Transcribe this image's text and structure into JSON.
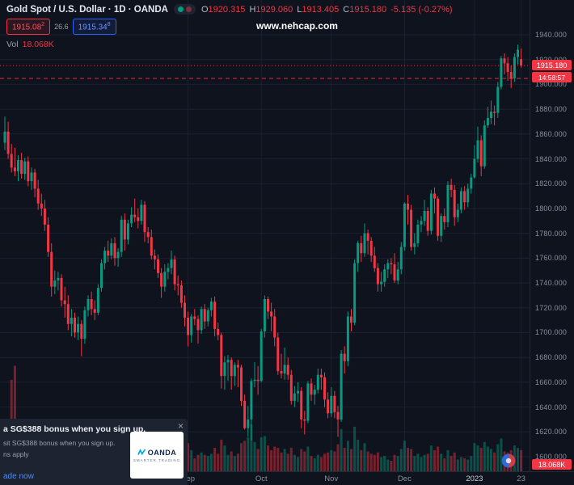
{
  "header": {
    "symbol_title": "Gold Spot / U.S. Dollar · 1D · OANDA",
    "ohlc": {
      "o_label": "O",
      "o": "1920.315",
      "h_label": "H",
      "h": "1929.060",
      "l_label": "L",
      "l": "1913.405",
      "c_label": "C",
      "c": "1915.180",
      "change": "-5.135 (-0.27%)"
    },
    "sell_price": "1915.08",
    "sell_sup": "2",
    "spread": "26.6",
    "buy_price": "1915.34",
    "buy_sup": "8",
    "vol_label": "Vol",
    "vol_value": "18.068K"
  },
  "watermark": "www.nehcap.com",
  "colors": {
    "up": "#089981",
    "down": "#f23645",
    "accent": "#2962ff",
    "badge": "#f23645"
  },
  "chart_data": {
    "type": "candlestick",
    "title": "Gold Spot / U.S. Dollar",
    "symbol": "XAU/USD",
    "timeframe": "1D",
    "exchange": "OANDA",
    "price_axis": {
      "min": 1600,
      "max": 1940,
      "step": 20,
      "labels": [
        "1940.000",
        "1920.000",
        "1900.000",
        "1880.000",
        "1860.000",
        "1840.000",
        "1820.000",
        "1800.000",
        "1780.000",
        "1760.000",
        "1740.000",
        "1720.000",
        "1700.000",
        "1680.000",
        "1660.000",
        "1640.000",
        "1620.000",
        "1600.000"
      ]
    },
    "x_labels": [
      {
        "label": "Sep",
        "index": 55,
        "major": false
      },
      {
        "label": "Oct",
        "index": 77,
        "major": false
      },
      {
        "label": "Nov",
        "index": 98,
        "major": false
      },
      {
        "label": "Dec",
        "index": 120,
        "major": false
      },
      {
        "label": "2023",
        "index": 141,
        "major": true
      },
      {
        "label": "23",
        "index": 155,
        "major": false
      }
    ],
    "current_price": {
      "value": 1915.18,
      "label": "1915.180",
      "countdown": "14:58:57"
    },
    "alert_line_price": 1904.8,
    "volume_label": "18.068K",
    "last_volume": "18.068K",
    "candles_format": [
      "open",
      "high",
      "low",
      "close",
      "volume_k"
    ],
    "candles": [
      [
        1853,
        1874,
        1847,
        1862,
        28
      ],
      [
        1862,
        1870,
        1840,
        1844,
        25
      ],
      [
        1844,
        1852,
        1829,
        1833,
        78
      ],
      [
        1833,
        1849,
        1826,
        1830,
        90
      ],
      [
        1830,
        1843,
        1822,
        1839,
        34
      ],
      [
        1839,
        1845,
        1824,
        1828,
        20
      ],
      [
        1828,
        1841,
        1823,
        1838,
        17
      ],
      [
        1838,
        1842,
        1818,
        1822,
        19
      ],
      [
        1822,
        1833,
        1815,
        1829,
        15
      ],
      [
        1829,
        1832,
        1809,
        1816,
        16
      ],
      [
        1816,
        1823,
        1799,
        1804,
        18
      ],
      [
        1804,
        1812,
        1794,
        1800,
        19
      ],
      [
        1800,
        1807,
        1782,
        1787,
        18
      ],
      [
        1787,
        1793,
        1761,
        1765,
        24
      ],
      [
        1765,
        1772,
        1729,
        1737,
        28
      ],
      [
        1737,
        1750,
        1731,
        1742,
        21
      ],
      [
        1742,
        1749,
        1734,
        1744,
        15
      ],
      [
        1744,
        1747,
        1721,
        1726,
        18
      ],
      [
        1726,
        1737,
        1712,
        1723,
        19
      ],
      [
        1723,
        1730,
        1702,
        1707,
        22
      ],
      [
        1707,
        1719,
        1697,
        1712,
        20
      ],
      [
        1712,
        1716,
        1696,
        1700,
        17
      ],
      [
        1700,
        1713,
        1694,
        1707,
        14
      ],
      [
        1707,
        1710,
        1681,
        1695,
        23
      ],
      [
        1695,
        1721,
        1691,
        1718,
        21
      ],
      [
        1718,
        1730,
        1713,
        1727,
        18
      ],
      [
        1727,
        1733,
        1714,
        1719,
        13
      ],
      [
        1719,
        1726,
        1710,
        1716,
        12
      ],
      [
        1716,
        1739,
        1714,
        1736,
        16
      ],
      [
        1736,
        1759,
        1733,
        1756,
        22
      ],
      [
        1756,
        1769,
        1751,
        1766,
        20
      ],
      [
        1766,
        1774,
        1757,
        1762,
        14
      ],
      [
        1762,
        1776,
        1759,
        1772,
        15
      ],
      [
        1772,
        1777,
        1754,
        1760,
        14
      ],
      [
        1760,
        1768,
        1753,
        1765,
        12
      ],
      [
        1765,
        1794,
        1761,
        1791,
        22
      ],
      [
        1791,
        1796,
        1766,
        1775,
        19
      ],
      [
        1775,
        1791,
        1771,
        1788,
        16
      ],
      [
        1788,
        1801,
        1785,
        1795,
        18
      ],
      [
        1795,
        1808,
        1789,
        1793,
        21
      ],
      [
        1793,
        1800,
        1784,
        1790,
        14
      ],
      [
        1790,
        1807,
        1787,
        1803,
        17
      ],
      [
        1803,
        1806,
        1773,
        1781,
        18
      ],
      [
        1781,
        1785,
        1772,
        1777,
        13
      ],
      [
        1777,
        1783,
        1759,
        1762,
        16
      ],
      [
        1762,
        1767,
        1751,
        1759,
        14
      ],
      [
        1759,
        1763,
        1744,
        1748,
        15
      ],
      [
        1748,
        1752,
        1728,
        1737,
        19
      ],
      [
        1737,
        1755,
        1733,
        1749,
        16
      ],
      [
        1749,
        1756,
        1743,
        1752,
        12
      ],
      [
        1752,
        1766,
        1747,
        1759,
        14
      ],
      [
        1759,
        1762,
        1734,
        1739,
        17
      ],
      [
        1739,
        1746,
        1730,
        1738,
        13
      ],
      [
        1738,
        1742,
        1720,
        1724,
        16
      ],
      [
        1724,
        1730,
        1705,
        1712,
        21
      ],
      [
        1712,
        1717,
        1689,
        1698,
        24
      ],
      [
        1698,
        1715,
        1692,
        1713,
        18
      ],
      [
        1713,
        1719,
        1706,
        1711,
        11
      ],
      [
        1711,
        1714,
        1691,
        1702,
        14
      ],
      [
        1702,
        1721,
        1699,
        1719,
        16
      ],
      [
        1719,
        1723,
        1703,
        1709,
        14
      ],
      [
        1709,
        1720,
        1705,
        1718,
        13
      ],
      [
        1718,
        1728,
        1713,
        1725,
        15
      ],
      [
        1725,
        1729,
        1697,
        1703,
        20
      ],
      [
        1703,
        1708,
        1694,
        1698,
        15
      ],
      [
        1698,
        1700,
        1655,
        1665,
        27
      ],
      [
        1665,
        1681,
        1654,
        1676,
        22
      ],
      [
        1676,
        1682,
        1661,
        1678,
        14
      ],
      [
        1678,
        1680,
        1654,
        1665,
        17
      ],
      [
        1665,
        1676,
        1657,
        1674,
        13
      ],
      [
        1674,
        1678,
        1656,
        1672,
        15
      ],
      [
        1672,
        1674,
        1641,
        1645,
        24
      ],
      [
        1645,
        1650,
        1622,
        1623,
        26
      ],
      [
        1623,
        1641,
        1616,
        1630,
        29
      ],
      [
        1630,
        1663,
        1613,
        1661,
        40
      ],
      [
        1661,
        1676,
        1656,
        1662,
        25
      ],
      [
        1662,
        1673,
        1650,
        1661,
        19
      ],
      [
        1661,
        1703,
        1660,
        1701,
        29
      ],
      [
        1701,
        1730,
        1696,
        1727,
        30
      ],
      [
        1727,
        1729,
        1711,
        1717,
        22
      ],
      [
        1717,
        1724,
        1701,
        1713,
        18
      ],
      [
        1713,
        1719,
        1689,
        1696,
        21
      ],
      [
        1696,
        1700,
        1666,
        1669,
        20
      ],
      [
        1669,
        1683,
        1663,
        1667,
        16
      ],
      [
        1667,
        1688,
        1662,
        1674,
        19
      ],
      [
        1674,
        1680,
        1662,
        1666,
        15
      ],
      [
        1666,
        1670,
        1642,
        1645,
        20
      ],
      [
        1645,
        1657,
        1640,
        1651,
        14
      ],
      [
        1651,
        1660,
        1644,
        1653,
        12
      ],
      [
        1653,
        1656,
        1623,
        1630,
        19
      ],
      [
        1630,
        1637,
        1618,
        1629,
        17
      ],
      [
        1629,
        1661,
        1627,
        1659,
        21
      ],
      [
        1659,
        1663,
        1645,
        1650,
        13
      ],
      [
        1650,
        1658,
        1642,
        1654,
        11
      ],
      [
        1654,
        1671,
        1651,
        1666,
        14
      ],
      [
        1666,
        1671,
        1654,
        1664,
        12
      ],
      [
        1664,
        1668,
        1640,
        1646,
        15
      ],
      [
        1646,
        1652,
        1631,
        1635,
        16
      ],
      [
        1635,
        1656,
        1632,
        1649,
        18
      ],
      [
        1649,
        1653,
        1631,
        1636,
        17
      ],
      [
        1636,
        1641,
        1616,
        1630,
        23
      ],
      [
        1630,
        1686,
        1628,
        1683,
        36
      ],
      [
        1683,
        1689,
        1667,
        1677,
        20
      ],
      [
        1677,
        1717,
        1673,
        1713,
        26
      ],
      [
        1713,
        1719,
        1701,
        1708,
        19
      ],
      [
        1708,
        1759,
        1706,
        1756,
        38
      ],
      [
        1756,
        1774,
        1749,
        1772,
        27
      ],
      [
        1772,
        1778,
        1757,
        1764,
        18
      ],
      [
        1764,
        1788,
        1761,
        1780,
        24
      ],
      [
        1780,
        1783,
        1763,
        1774,
        17
      ],
      [
        1774,
        1777,
        1757,
        1762,
        15
      ],
      [
        1762,
        1769,
        1749,
        1752,
        14
      ],
      [
        1752,
        1756,
        1733,
        1739,
        16
      ],
      [
        1739,
        1749,
        1733,
        1741,
        12
      ],
      [
        1741,
        1755,
        1737,
        1751,
        13
      ],
      [
        1751,
        1759,
        1744,
        1756,
        10
      ],
      [
        1756,
        1760,
        1747,
        1755,
        9
      ],
      [
        1755,
        1764,
        1740,
        1742,
        14
      ],
      [
        1742,
        1757,
        1739,
        1751,
        13
      ],
      [
        1751,
        1773,
        1747,
        1769,
        19
      ],
      [
        1769,
        1805,
        1766,
        1804,
        26
      ],
      [
        1804,
        1811,
        1787,
        1799,
        20
      ],
      [
        1799,
        1803,
        1766,
        1769,
        19
      ],
      [
        1769,
        1780,
        1763,
        1772,
        13
      ],
      [
        1772,
        1791,
        1769,
        1787,
        15
      ],
      [
        1787,
        1794,
        1781,
        1790,
        12
      ],
      [
        1790,
        1807,
        1786,
        1798,
        14
      ],
      [
        1798,
        1801,
        1778,
        1782,
        15
      ],
      [
        1782,
        1815,
        1779,
        1812,
        22
      ],
      [
        1812,
        1817,
        1796,
        1808,
        18
      ],
      [
        1808,
        1810,
        1774,
        1778,
        21
      ],
      [
        1778,
        1796,
        1773,
        1794,
        15
      ],
      [
        1794,
        1800,
        1783,
        1789,
        11
      ],
      [
        1789,
        1822,
        1785,
        1819,
        18
      ],
      [
        1819,
        1824,
        1809,
        1815,
        13
      ],
      [
        1815,
        1819,
        1786,
        1793,
        16
      ],
      [
        1793,
        1804,
        1789,
        1799,
        10
      ],
      [
        1799,
        1817,
        1796,
        1814,
        12
      ],
      [
        1814,
        1818,
        1799,
        1805,
        11
      ],
      [
        1805,
        1820,
        1801,
        1816,
        10
      ],
      [
        1816,
        1828,
        1812,
        1825,
        13
      ],
      [
        1825,
        1851,
        1824,
        1840,
        24
      ],
      [
        1840,
        1866,
        1837,
        1855,
        22
      ],
      [
        1855,
        1859,
        1826,
        1834,
        20
      ],
      [
        1834,
        1871,
        1832,
        1867,
        25
      ],
      [
        1867,
        1882,
        1865,
        1873,
        21
      ],
      [
        1873,
        1887,
        1868,
        1878,
        19
      ],
      [
        1878,
        1883,
        1867,
        1877,
        16
      ],
      [
        1877,
        1902,
        1873,
        1898,
        23
      ],
      [
        1898,
        1923,
        1896,
        1921,
        28
      ],
      [
        1921,
        1925,
        1908,
        1917,
        17
      ],
      [
        1917,
        1922,
        1903,
        1910,
        16
      ],
      [
        1910,
        1915,
        1897,
        1905,
        18
      ],
      [
        1905,
        1925,
        1902,
        1922,
        22
      ],
      [
        1922,
        1932,
        1916,
        1928,
        20
      ],
      [
        1920.315,
        1929.06,
        1913.405,
        1915.18,
        18.068
      ]
    ]
  },
  "ad": {
    "close": "×",
    "line1": "a SG$388 bonus when you sign up.",
    "line2": "sit SG$388 bonus when you sign up.",
    "line3": "ns apply",
    "cta": "ade now",
    "logo_text": "OANDA",
    "logo_sub": "SMARTER TRADING"
  }
}
